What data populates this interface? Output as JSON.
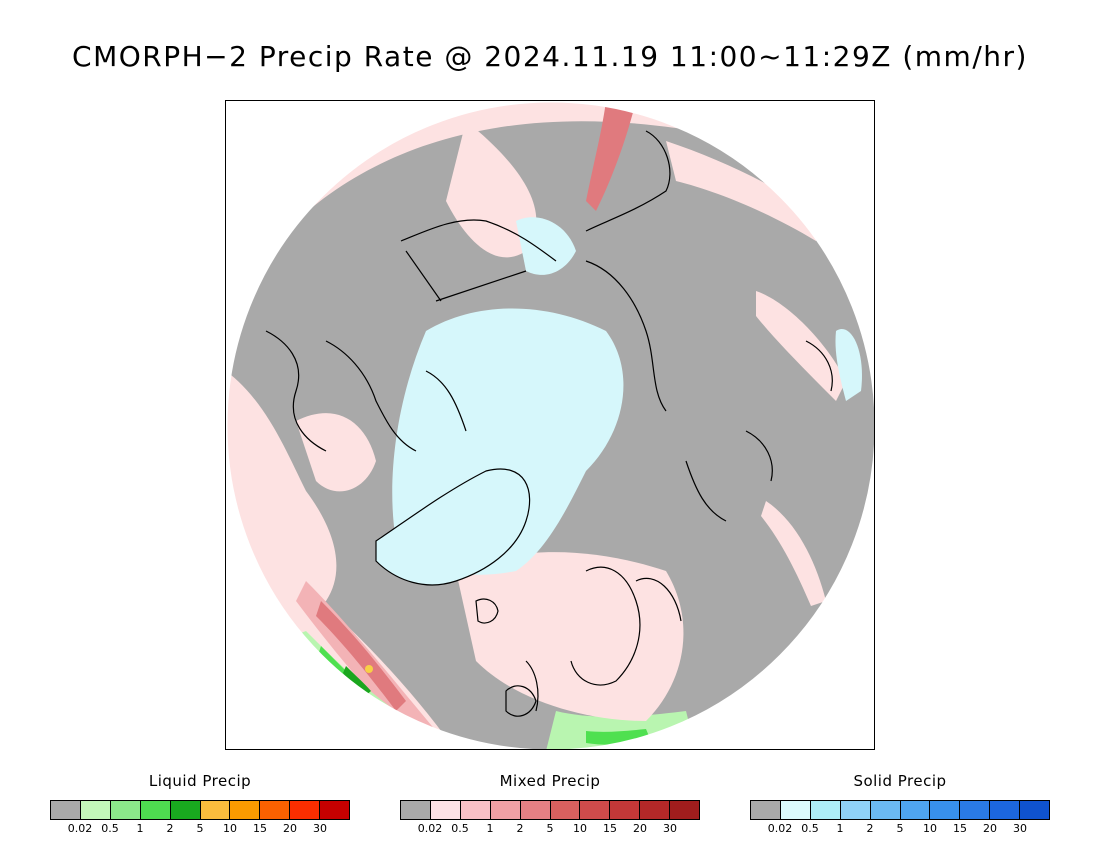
{
  "title": "CMORPH−2 Precip Rate @ 2024.11.19 11:00~11:29Z (mm/hr)",
  "map": {
    "projection": "north-polar-stereographic",
    "colors": {
      "no_precip": "#a9a9a9",
      "mixed_light": "#fde2e2",
      "mixed_mid": "#f3b3b6",
      "mixed_heavy": "#e07a7e",
      "solid_light": "#d6f7fb",
      "liquid_light": "#b9f5b0",
      "liquid_mid": "#4fe050",
      "liquid_heavy": "#1aa61e",
      "liquid_peak": "#f7d046",
      "coastline": "#000000"
    }
  },
  "legends": [
    {
      "title": "Liquid Precip",
      "colors": [
        "#a9a9a9",
        "#c3f7b9",
        "#8be98a",
        "#4edc50",
        "#19a91f",
        "#fbbc3d",
        "#fb9b00",
        "#fb6100",
        "#fb2e00",
        "#c50000"
      ],
      "ticks": [
        "0.02",
        "0.5",
        "1",
        "2",
        "5",
        "10",
        "15",
        "20",
        "30"
      ]
    },
    {
      "title": "Mixed Precip",
      "colors": [
        "#a9a9a9",
        "#fde2e6",
        "#f9c0c6",
        "#f0a0a5",
        "#e58084",
        "#d9605f",
        "#cf4b4b",
        "#c33838",
        "#b32828",
        "#a01d1d"
      ],
      "ticks": [
        "0.02",
        "0.5",
        "1",
        "2",
        "5",
        "10",
        "15",
        "20",
        "30"
      ]
    },
    {
      "title": "Solid Precip",
      "colors": [
        "#a9a9a9",
        "#dcfbfd",
        "#aeeef7",
        "#8fd1f7",
        "#6bb9f3",
        "#4fa5f0",
        "#3890ec",
        "#2a7ae6",
        "#1c66de",
        "#0f53cf"
      ],
      "ticks": [
        "0.02",
        "0.5",
        "1",
        "2",
        "5",
        "10",
        "15",
        "20",
        "30"
      ]
    }
  ]
}
